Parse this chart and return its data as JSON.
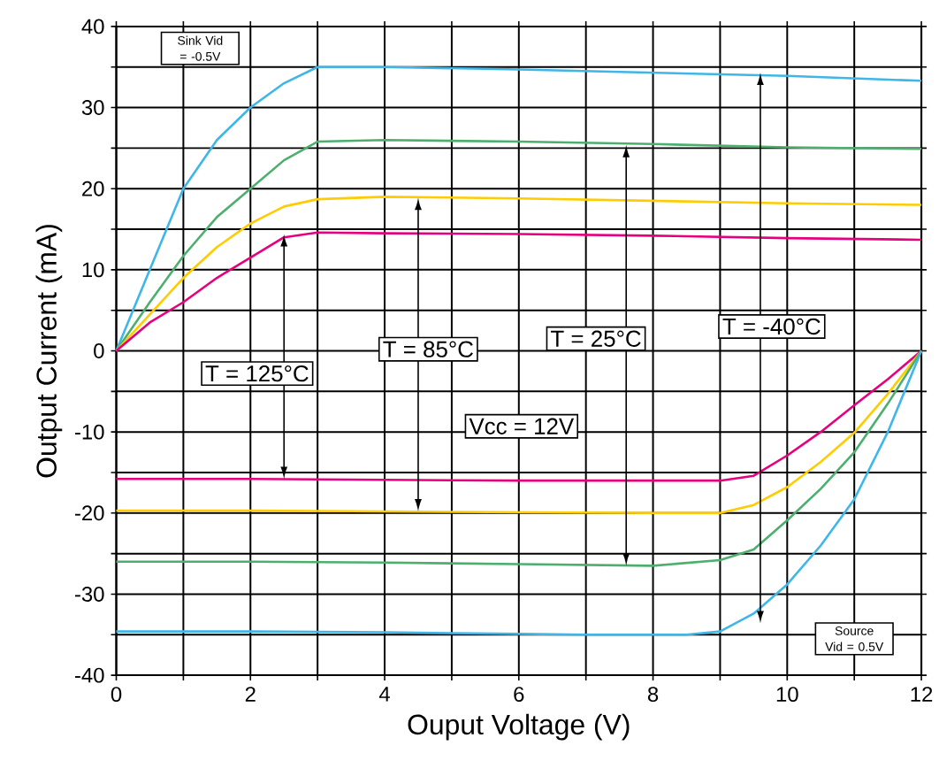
{
  "chart_data": {
    "type": "line",
    "xlabel": "Ouput Voltage (V)",
    "ylabel": "Output Current (mA)",
    "xlim": [
      0,
      12
    ],
    "ylim": [
      -40,
      40
    ],
    "xticks": [
      0,
      {
        "value": 1,
        "label": null
      },
      2,
      {
        "value": 3,
        "label": null
      },
      4,
      {
        "value": 5,
        "label": null
      },
      6,
      {
        "value": 7,
        "label": null
      },
      8,
      {
        "value": 9,
        "label": null
      },
      10,
      {
        "value": 11,
        "label": null
      },
      12
    ],
    "yticks": [
      -40,
      {
        "value": -35,
        "label": null
      },
      -30,
      {
        "value": -25,
        "label": null
      },
      -20,
      {
        "value": -15,
        "label": null
      },
      -10,
      {
        "value": -5,
        "label": null
      },
      0,
      {
        "value": 5,
        "label": null
      },
      10,
      {
        "value": 15,
        "label": null
      },
      20,
      {
        "value": 25,
        "label": null
      },
      30,
      {
        "value": 35,
        "label": null
      },
      40
    ],
    "grid": true,
    "series": [
      {
        "color": "#3fb6e8",
        "x": [
          0,
          0.5,
          1,
          1.5,
          2,
          2.5,
          3,
          4,
          6,
          8,
          10,
          12
        ],
        "values": [
          0,
          10,
          20,
          26,
          30,
          33,
          35,
          35,
          34.7,
          34.3,
          33.9,
          33.3
        ]
      },
      {
        "color": "#4caf6e",
        "x": [
          0,
          0.5,
          1,
          1.5,
          2,
          2.5,
          3,
          4,
          6,
          8,
          10,
          12
        ],
        "values": [
          0,
          6,
          11.7,
          16.5,
          20,
          23.5,
          25.8,
          26,
          25.8,
          25.5,
          25.1,
          24.9
        ]
      },
      {
        "color": "#ffcc00",
        "x": [
          0,
          0.5,
          1,
          1.5,
          2,
          2.5,
          3,
          4,
          6,
          8,
          10,
          12
        ],
        "values": [
          0,
          4.5,
          9,
          12.8,
          15.7,
          17.8,
          18.7,
          19,
          18.8,
          18.5,
          18.2,
          18
        ]
      },
      {
        "color": "#e6007e",
        "x": [
          0,
          0.5,
          1,
          1.5,
          2,
          2.5,
          3,
          4,
          6,
          8,
          10,
          12
        ],
        "values": [
          0,
          3.5,
          6,
          9,
          11.5,
          14,
          14.6,
          14.5,
          14.4,
          14.2,
          13.9,
          13.7
        ]
      },
      {
        "color": "#e6007e",
        "x": [
          0,
          2,
          4,
          6,
          8,
          9,
          9.5,
          10,
          10.5,
          11,
          11.5,
          12
        ],
        "values": [
          -15.8,
          -15.8,
          -15.9,
          -16,
          -16,
          -16,
          -15.4,
          -12.9,
          -10,
          -6.7,
          -3.5,
          0
        ]
      },
      {
        "color": "#ffcc00",
        "x": [
          0,
          2,
          4,
          6,
          8,
          9,
          9.5,
          10,
          10.5,
          11,
          11.5,
          12
        ],
        "values": [
          -19.7,
          -19.7,
          -19.8,
          -19.9,
          -20,
          -20,
          -19,
          -16.8,
          -13.7,
          -10.1,
          -5.3,
          0
        ]
      },
      {
        "color": "#4caf6e",
        "x": [
          0,
          2,
          4,
          6,
          8,
          9,
          9.5,
          10,
          10.5,
          11,
          11.5,
          12
        ],
        "values": [
          -26,
          -26,
          -26.1,
          -26.3,
          -26.5,
          -25.8,
          -24.5,
          -20.9,
          -17,
          -12.5,
          -6.5,
          0
        ]
      },
      {
        "color": "#3fb6e8",
        "x": [
          0,
          2,
          4,
          6,
          7,
          8.5,
          9,
          9.5,
          10,
          10.5,
          11,
          11.5,
          12
        ],
        "values": [
          -34.6,
          -34.6,
          -34.7,
          -34.9,
          -35,
          -35,
          -34.6,
          -32.4,
          -28.8,
          -24,
          -18.3,
          -10,
          0
        ]
      }
    ],
    "annotations": [
      "Sink Vid = -0.5V",
      {
        "text": "T = 125°C",
        "x": 2.5,
        "y": 14.4
      },
      {
        "text": "T = 85°C",
        "x": 4.5,
        "y": 18.9
      },
      {
        "text": "T = 25°C",
        "x": 7.6,
        "y": 25.4
      },
      {
        "text": "T = -40°C",
        "x": 9.6,
        "y": 34.3
      },
      "Vcc = 12V",
      "Source Vid = 0.5V"
    ]
  }
}
